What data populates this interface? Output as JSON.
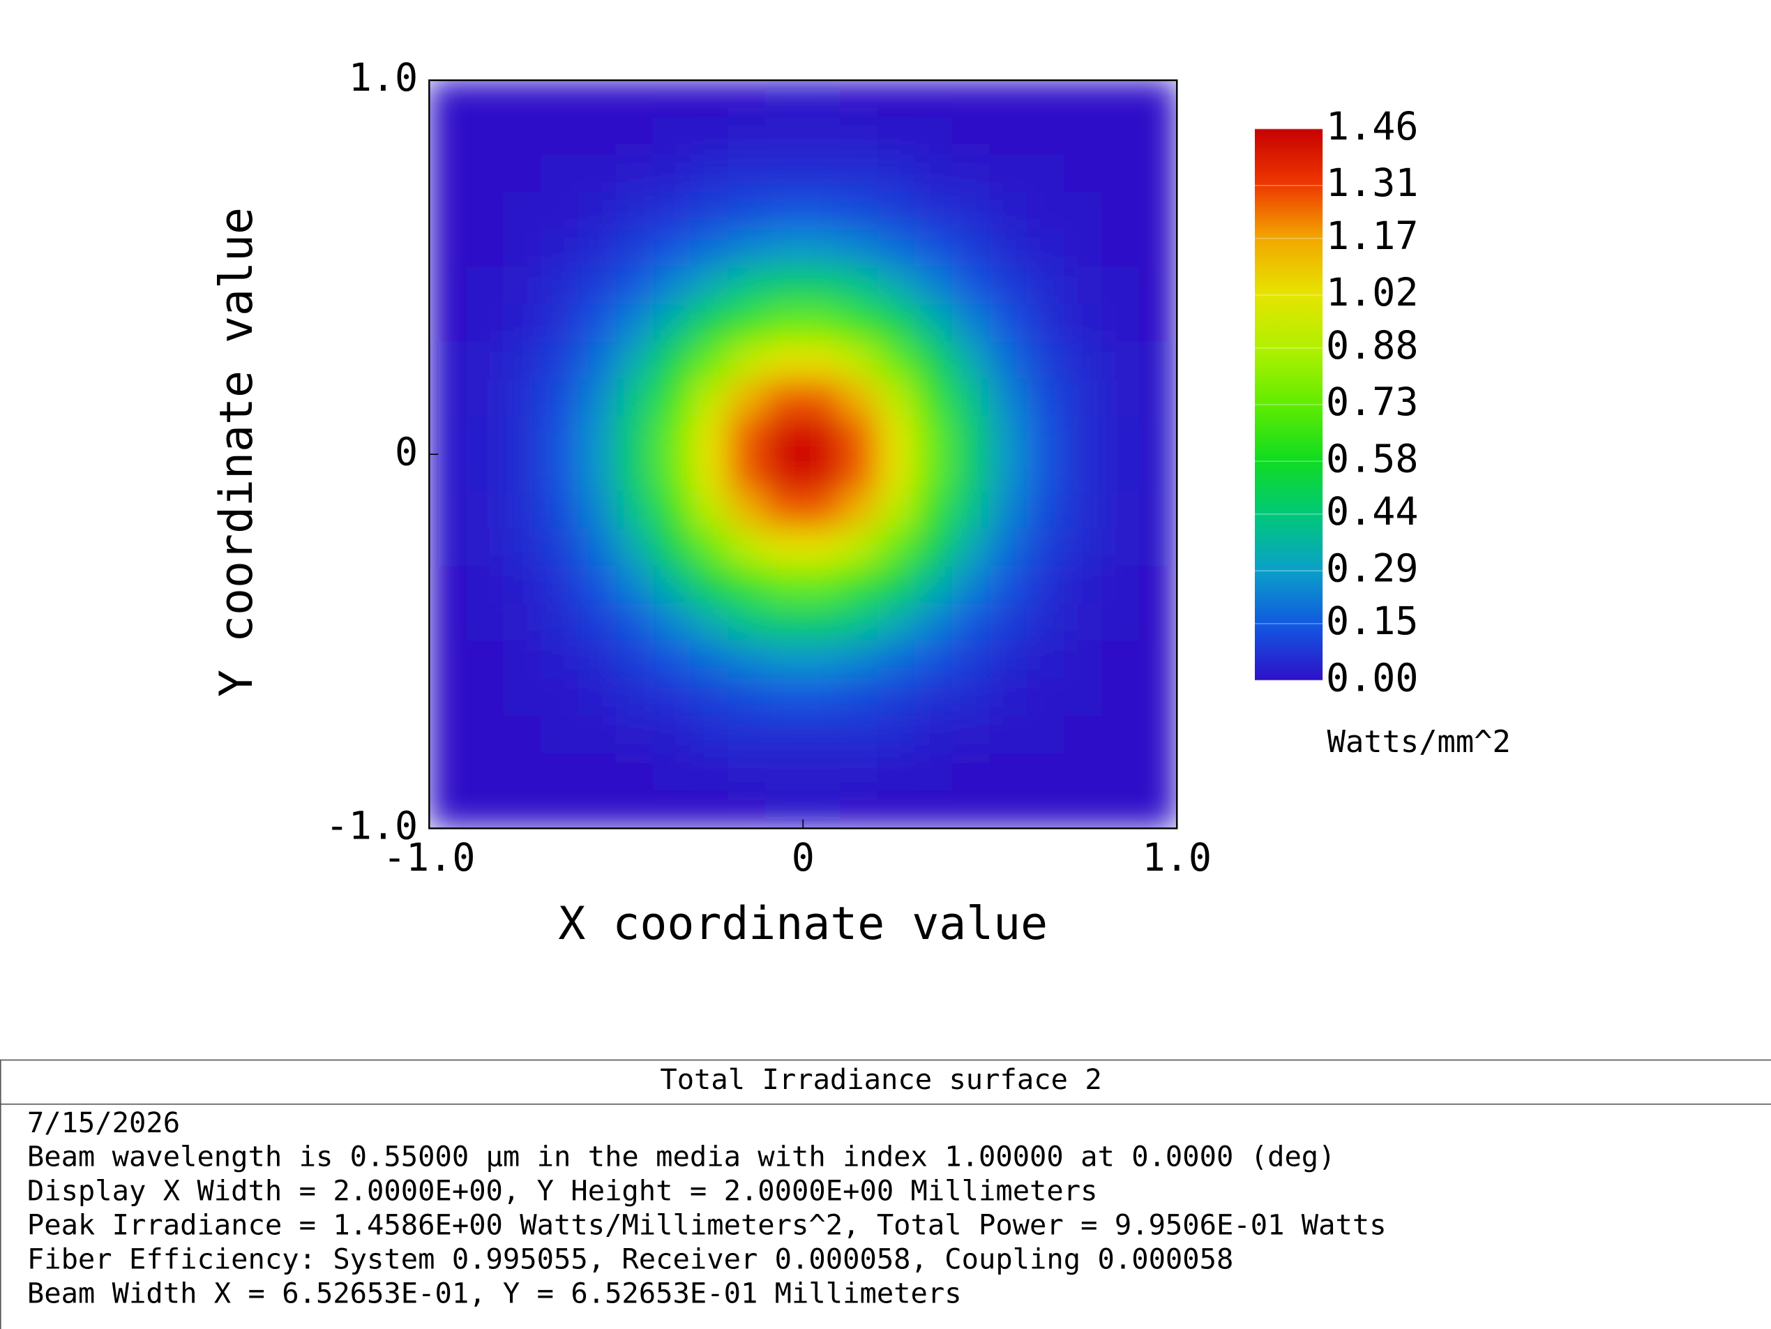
{
  "chart_data": {
    "type": "heatmap",
    "x_label": "X coordinate value",
    "y_label": "Y coordinate value",
    "xlim": [
      -1,
      1
    ],
    "ylim": [
      -1,
      1
    ],
    "xticks": [
      {
        "value": -1,
        "label": "-1.0"
      },
      0,
      {
        "value": 1,
        "label": "1.0"
      }
    ],
    "yticks": [
      {
        "value": -1,
        "label": "-1.0"
      },
      0,
      {
        "value": 1,
        "label": "1.0"
      }
    ],
    "zlim": [
      0,
      1.46
    ],
    "zticks": [
      {
        "value": 0,
        "label": "0.00"
      },
      0.15,
      0.29,
      0.44,
      0.58,
      0.73,
      0.88,
      1.02,
      1.17,
      1.31,
      1.46
    ],
    "colorbar_label": "Watts/mm^2",
    "colormap": [
      "#2e10c8",
      "#1258e0",
      "#0aa0c8",
      "#00c87a",
      "#10dc20",
      "#60ec00",
      "#b0f000",
      "#e6e400",
      "#f2a800",
      "#ee3800",
      "#c80000"
    ],
    "z": [
      [
        0,
        0,
        0,
        0,
        0,
        0,
        0,
        0,
        0,
        0.01,
        0.01,
        0,
        0,
        0,
        0,
        0,
        0,
        0,
        0,
        0
      ],
      [
        0,
        0,
        0,
        0,
        0,
        0,
        0.01,
        0.01,
        0.02,
        0.02,
        0.02,
        0.02,
        0.01,
        0.01,
        0,
        0,
        0,
        0,
        0,
        0
      ],
      [
        0,
        0,
        0,
        0.01,
        0.01,
        0.02,
        0.03,
        0.05,
        0.06,
        0.06,
        0.06,
        0.06,
        0.05,
        0.03,
        0.02,
        0.01,
        0.01,
        0,
        0,
        0
      ],
      [
        0,
        0,
        0.01,
        0.01,
        0.03,
        0.05,
        0.07,
        0.1,
        0.12,
        0.14,
        0.14,
        0.12,
        0.1,
        0.07,
        0.05,
        0.03,
        0.01,
        0.01,
        0,
        0
      ],
      [
        0,
        0,
        0.01,
        0.03,
        0.05,
        0.09,
        0.14,
        0.19,
        0.24,
        0.27,
        0.27,
        0.24,
        0.19,
        0.14,
        0.09,
        0.05,
        0.03,
        0.01,
        0,
        0
      ],
      [
        0,
        0.01,
        0.02,
        0.05,
        0.09,
        0.15,
        0.24,
        0.33,
        0.42,
        0.47,
        0.47,
        0.42,
        0.33,
        0.24,
        0.15,
        0.09,
        0.05,
        0.02,
        0.01,
        0
      ],
      [
        0,
        0.01,
        0.03,
        0.07,
        0.14,
        0.24,
        0.37,
        0.52,
        0.65,
        0.73,
        0.73,
        0.65,
        0.52,
        0.37,
        0.24,
        0.14,
        0.07,
        0.03,
        0.01,
        0
      ],
      [
        0.01,
        0.02,
        0.05,
        0.1,
        0.19,
        0.33,
        0.52,
        0.73,
        0.91,
        1.02,
        1.02,
        0.91,
        0.73,
        0.52,
        0.33,
        0.19,
        0.1,
        0.05,
        0.02,
        0.01
      ],
      [
        0.01,
        0.02,
        0.06,
        0.12,
        0.24,
        0.42,
        0.65,
        0.91,
        1.14,
        1.27,
        1.27,
        1.14,
        0.91,
        0.65,
        0.42,
        0.24,
        0.12,
        0.06,
        0.02,
        0.01
      ],
      [
        0.01,
        0.03,
        0.06,
        0.14,
        0.27,
        0.47,
        0.73,
        1.02,
        1.27,
        1.42,
        1.42,
        1.27,
        1.02,
        0.73,
        0.47,
        0.27,
        0.14,
        0.06,
        0.03,
        0.01
      ],
      [
        0.01,
        0.03,
        0.06,
        0.14,
        0.27,
        0.47,
        0.73,
        1.02,
        1.27,
        1.42,
        1.42,
        1.27,
        1.02,
        0.73,
        0.47,
        0.27,
        0.14,
        0.06,
        0.03,
        0.01
      ],
      [
        0.01,
        0.02,
        0.06,
        0.12,
        0.24,
        0.42,
        0.65,
        0.91,
        1.14,
        1.27,
        1.27,
        1.14,
        0.91,
        0.65,
        0.42,
        0.24,
        0.12,
        0.06,
        0.02,
        0.01
      ],
      [
        0.01,
        0.02,
        0.05,
        0.1,
        0.19,
        0.33,
        0.52,
        0.73,
        0.91,
        1.02,
        1.02,
        0.91,
        0.73,
        0.52,
        0.33,
        0.19,
        0.1,
        0.05,
        0.02,
        0.01
      ],
      [
        0,
        0.01,
        0.03,
        0.07,
        0.14,
        0.24,
        0.37,
        0.52,
        0.65,
        0.73,
        0.73,
        0.65,
        0.52,
        0.37,
        0.24,
        0.14,
        0.07,
        0.03,
        0.01,
        0
      ],
      [
        0,
        0.01,
        0.02,
        0.05,
        0.09,
        0.15,
        0.24,
        0.33,
        0.42,
        0.47,
        0.47,
        0.42,
        0.33,
        0.24,
        0.15,
        0.09,
        0.05,
        0.02,
        0.01,
        0
      ],
      [
        0,
        0,
        0.01,
        0.03,
        0.05,
        0.09,
        0.14,
        0.19,
        0.24,
        0.27,
        0.27,
        0.24,
        0.19,
        0.14,
        0.09,
        0.05,
        0.03,
        0.01,
        0,
        0
      ],
      [
        0,
        0,
        0.01,
        0.01,
        0.03,
        0.05,
        0.07,
        0.1,
        0.12,
        0.14,
        0.14,
        0.12,
        0.1,
        0.07,
        0.05,
        0.03,
        0.01,
        0.01,
        0,
        0
      ],
      [
        0,
        0,
        0,
        0.01,
        0.01,
        0.02,
        0.03,
        0.05,
        0.06,
        0.06,
        0.06,
        0.06,
        0.05,
        0.03,
        0.02,
        0.01,
        0.01,
        0,
        0,
        0
      ],
      [
        0,
        0,
        0,
        0,
        0,
        0,
        0.01,
        0.01,
        0.02,
        0.02,
        0.02,
        0.02,
        0.01,
        0.01,
        0,
        0,
        0,
        0,
        0,
        0
      ],
      [
        0,
        0,
        0,
        0,
        0,
        0,
        0,
        0,
        0,
        0.01,
        0.01,
        0,
        0,
        0,
        0,
        0,
        0,
        0,
        0,
        0
      ]
    ]
  },
  "footer": {
    "title": "Total Irradiance surface 2",
    "lines": [
      "7/15/2026",
      "Beam wavelength is 0.55000 µm in the media with index 1.00000 at 0.0000 (deg)",
      "Display X Width = 2.0000E+00, Y Height = 2.0000E+00 Millimeters",
      "Peak Irradiance = 1.4586E+00 Watts/Millimeters^2, Total Power = 9.9506E-01 Watts",
      "Fiber Efficiency: System 0.995055, Receiver 0.000058, Coupling 0.000058",
      "Beam Width X = 6.52653E-01, Y = 6.52653E-01 Millimeters"
    ]
  }
}
